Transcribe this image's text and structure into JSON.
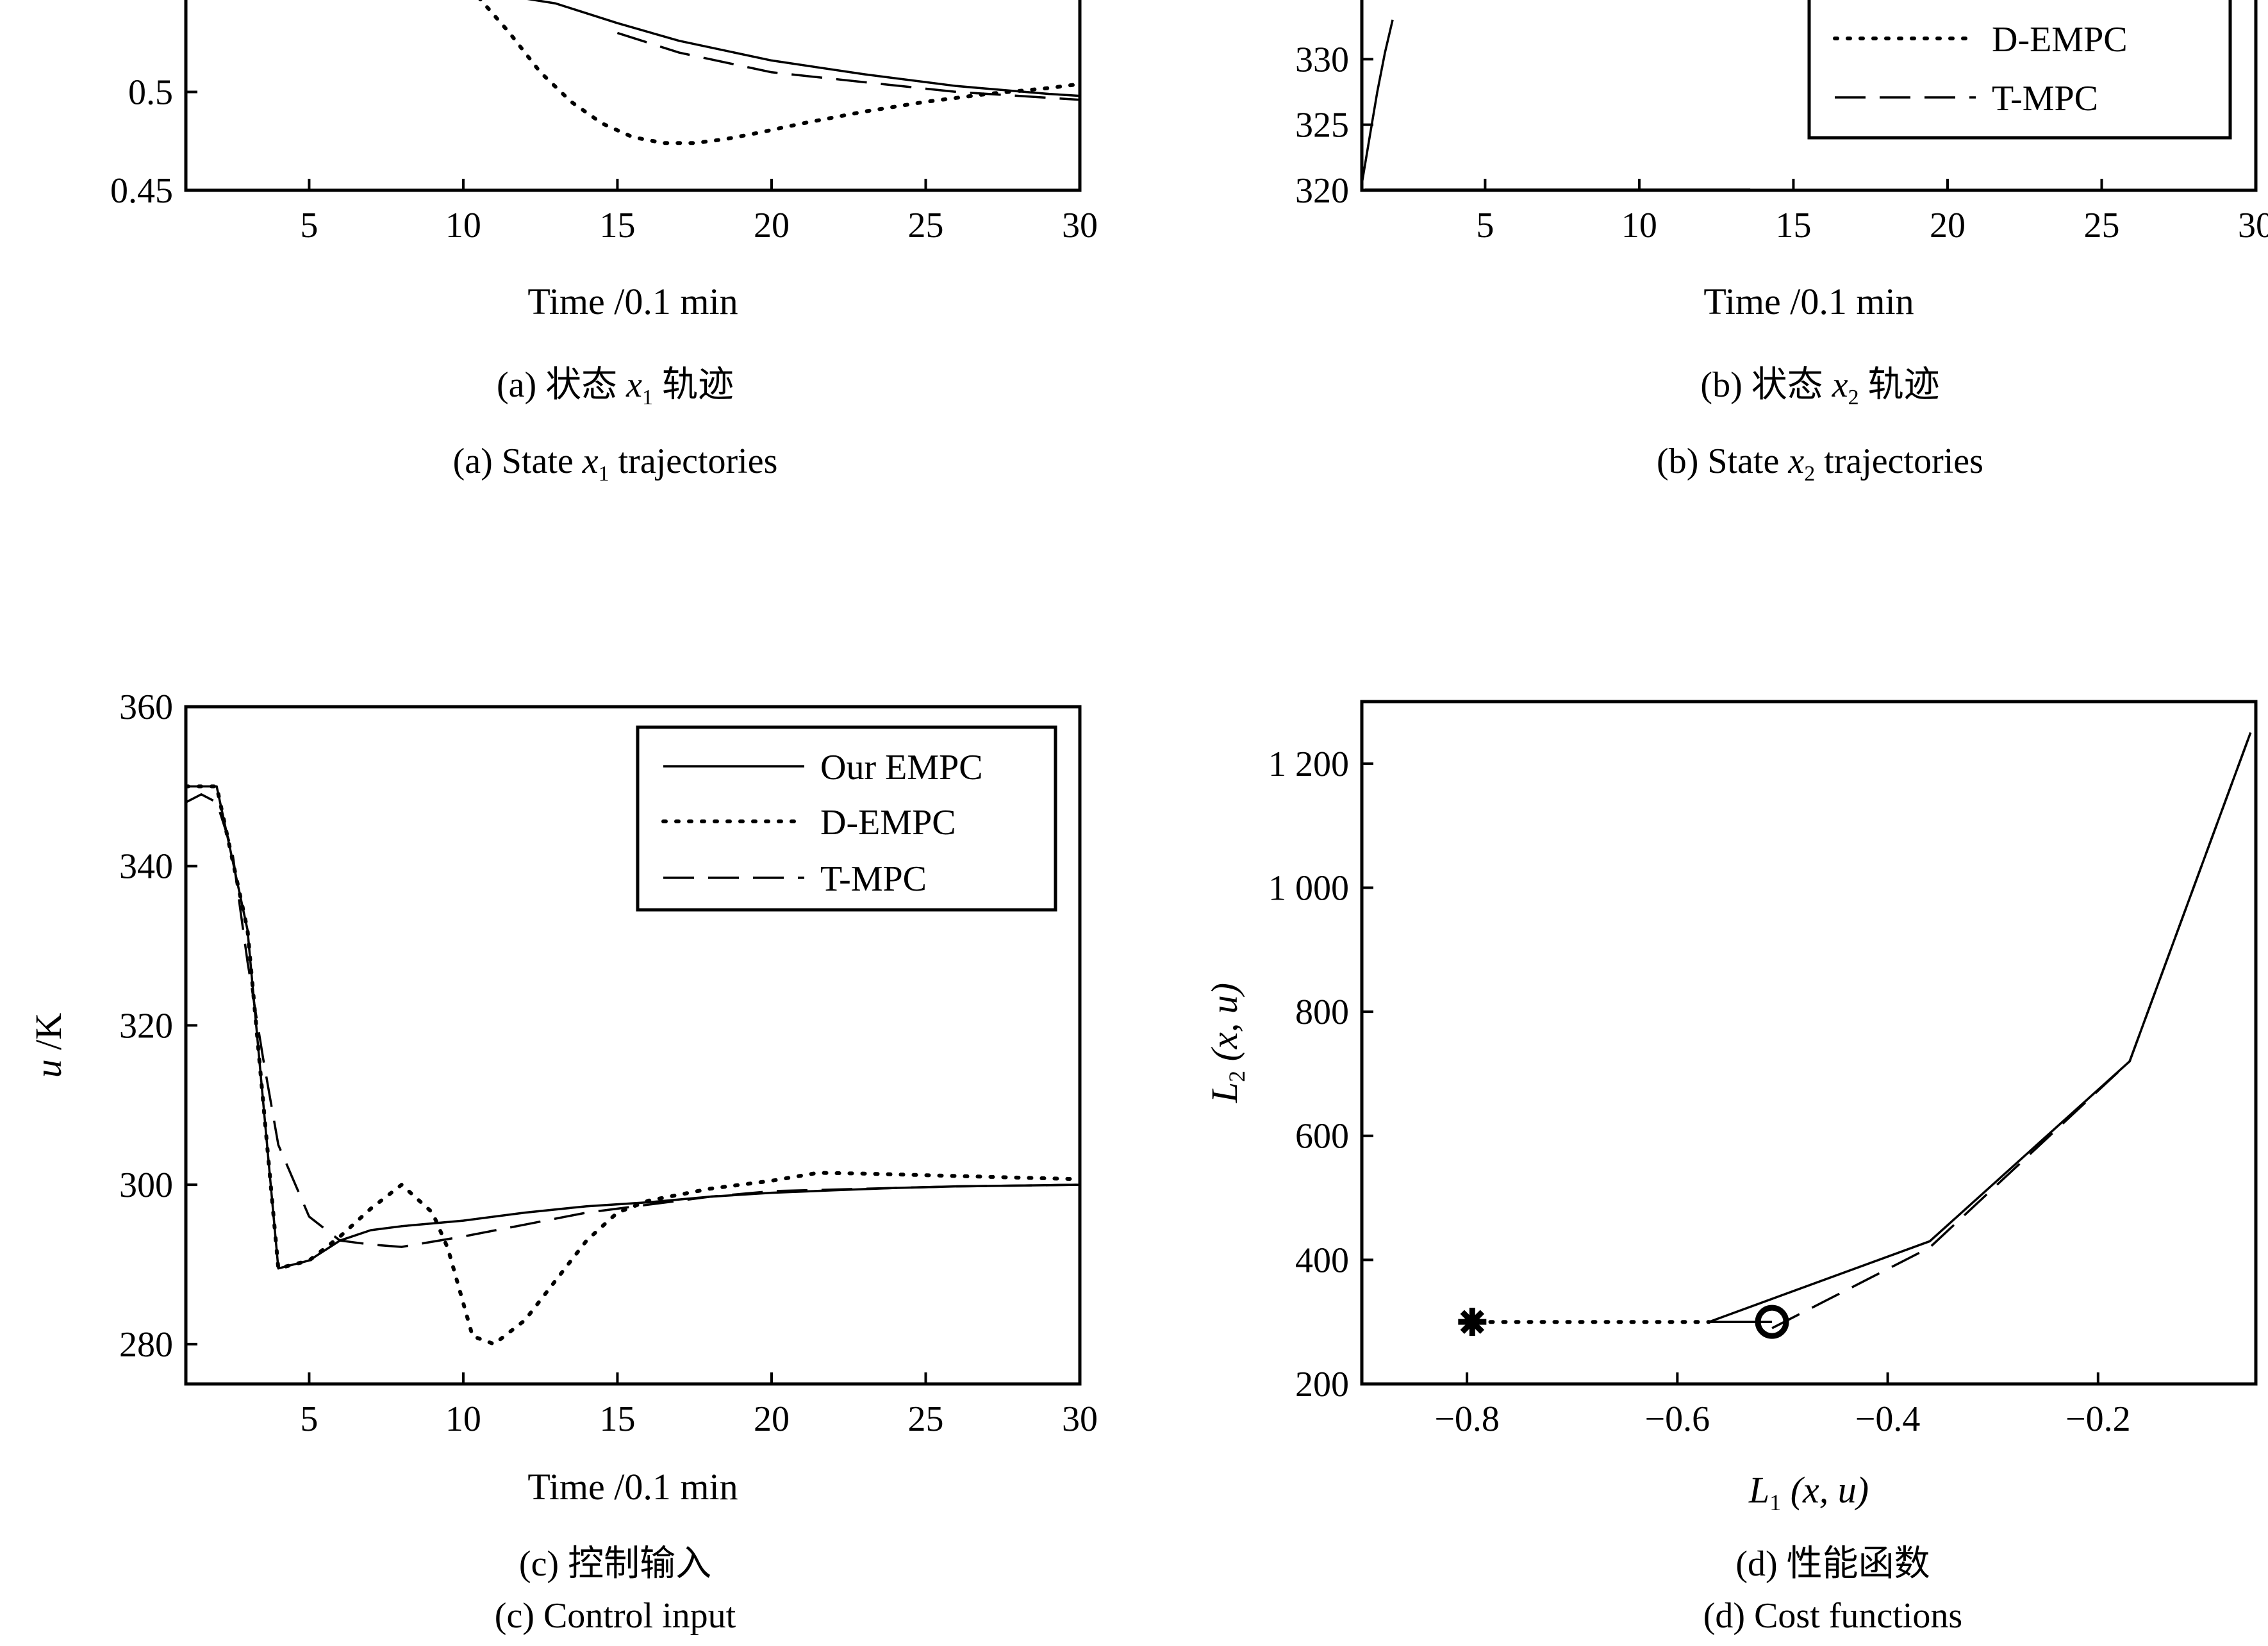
{
  "chart_data": [
    {
      "id": "a",
      "type": "line",
      "xlabel": "Time /0.1 min",
      "ylabel": "",
      "xlim": [
        1,
        30
      ],
      "ylim": [
        0.45,
        0.55
      ],
      "xticks": [
        5,
        10,
        15,
        20,
        25,
        30
      ],
      "yticks": [
        0.45,
        0.5
      ],
      "legend": "none",
      "series": [
        {
          "name": "",
          "style": "solid",
          "x": [
            11,
            13,
            15,
            17,
            20,
            23,
            26,
            29,
            30
          ],
          "y": [
            0.55,
            0.545,
            0.535,
            0.526,
            0.516,
            0.509,
            0.503,
            0.499,
            0.498
          ]
        },
        {
          "name": "",
          "style": "dotted",
          "x": [
            10.5,
            11.5,
            12.5,
            13.5,
            14.5,
            15.5,
            16.5,
            17.5,
            18.5,
            19.5,
            21,
            23,
            25,
            27,
            29,
            30
          ],
          "y": [
            0.548,
            0.53,
            0.51,
            0.495,
            0.484,
            0.477,
            0.474,
            0.474,
            0.476,
            0.479,
            0.484,
            0.49,
            0.495,
            0.499,
            0.502,
            0.504
          ]
        },
        {
          "name": "",
          "style": "dashed",
          "x": [
            15,
            17,
            20,
            23,
            26,
            29,
            30
          ],
          "y": [
            0.53,
            0.52,
            0.51,
            0.505,
            0.5,
            0.497,
            0.496
          ]
        }
      ],
      "caption_cn": [
        "(a) 状态 ",
        "x",
        "1",
        " 轨迹"
      ],
      "caption_en": [
        "(a) State ",
        "x",
        "1",
        " trajectories"
      ]
    },
    {
      "id": "b",
      "type": "line",
      "xlabel": "Time /0.1 min",
      "ylabel": "",
      "xlim": [
        1,
        30
      ],
      "ylim": [
        320,
        335
      ],
      "xticks": [
        5,
        10,
        15,
        20,
        25,
        30
      ],
      "yticks": [
        320,
        325,
        330
      ],
      "legend": "bottom-right",
      "legend_entries": [
        "D-EMPC",
        "T-MPC"
      ],
      "series": [
        {
          "name": "",
          "style": "solid",
          "x": [
            1,
            1.25,
            1.5,
            1.75,
            2
          ],
          "y": [
            320.5,
            324,
            327.5,
            330.5,
            333
          ]
        },
        {
          "name": "",
          "style": "solid",
          "x": [
            1.1,
            13.6
          ],
          "y": [
            320.05,
            320.05
          ]
        },
        {
          "name": "D-EMPC",
          "style": "dotted",
          "x": [],
          "y": []
        },
        {
          "name": "T-MPC",
          "style": "dashed",
          "x": [],
          "y": []
        }
      ],
      "caption_cn": [
        "(b) 状态  ",
        "x",
        "2",
        " 轨迹"
      ],
      "caption_en": [
        "(b) State ",
        "x",
        "2",
        " trajectories"
      ]
    },
    {
      "id": "c",
      "type": "line",
      "xlabel": "Time /0.1 min",
      "ylabel": "u /K",
      "xlim": [
        1,
        30
      ],
      "ylim": [
        275,
        360
      ],
      "xticks": [
        5,
        10,
        15,
        20,
        25,
        30
      ],
      "yticks": [
        280,
        300,
        320,
        340,
        360
      ],
      "legend": "top-right",
      "legend_entries": [
        "Our EMPC",
        "D-EMPC",
        "T-MPC"
      ],
      "series": [
        {
          "name": "Our EMPC",
          "style": "solid",
          "x": [
            1,
            2,
            3,
            4,
            5,
            6,
            7,
            8,
            10,
            12,
            14,
            16,
            18,
            20,
            22,
            24,
            26,
            28,
            30
          ],
          "y": [
            350,
            350,
            332,
            289.5,
            290.5,
            293,
            294.3,
            294.8,
            295.5,
            296.5,
            297.3,
            297.8,
            298.5,
            299,
            299.3,
            299.6,
            299.8,
            299.9,
            300
          ]
        },
        {
          "name": "D-EMPC",
          "style": "dotted",
          "x": [
            1,
            2,
            3,
            4,
            5,
            6,
            7,
            8,
            9,
            9.5,
            10.3,
            11,
            12,
            13,
            14,
            15,
            16,
            18,
            20,
            21.5,
            23,
            25,
            27,
            29,
            30
          ],
          "y": [
            350,
            350,
            332,
            289.5,
            290.5,
            293.5,
            297,
            300,
            296.5,
            292,
            281,
            280,
            283,
            288,
            293,
            296.5,
            298,
            299.5,
            300.5,
            301.5,
            301.4,
            301.2,
            301,
            300.8,
            300.7
          ]
        },
        {
          "name": "T-MPC",
          "style": "dashed",
          "x": [
            1,
            1.5,
            2,
            2.5,
            3,
            3.5,
            4,
            5,
            6,
            7,
            8,
            10,
            12,
            14,
            16,
            18,
            20,
            22,
            24,
            26,
            28,
            30
          ],
          "y": [
            348,
            349,
            348,
            342,
            328,
            316,
            305,
            296,
            293,
            292.5,
            292.2,
            293.5,
            295,
            296.5,
            297.5,
            298.5,
            299.2,
            299.4,
            299.6,
            299.8,
            299.9,
            300
          ]
        }
      ],
      "caption_cn": [
        "(c) 控制输入"
      ],
      "caption_en": [
        "(c) Control input"
      ]
    },
    {
      "id": "d",
      "type": "line",
      "xlabel": "L1 (x, u)",
      "ylabel": "L2 (x, u)",
      "xlim": [
        -0.9,
        -0.05
      ],
      "ylim": [
        200,
        1300
      ],
      "xticks": [
        -0.8,
        -0.6,
        -0.4,
        -0.2
      ],
      "xtick_labels": [
        "−0.8",
        "−0.6",
        "−0.4",
        "−0.2"
      ],
      "yticks": [
        200,
        400,
        600,
        800,
        1000,
        1200
      ],
      "ytick_labels": [
        "200",
        "400",
        "600",
        "800",
        "1 000",
        "1 200"
      ],
      "legend": "none",
      "series": [
        {
          "name": "",
          "style": "solid",
          "x": [
            -0.57,
            -0.36,
            -0.17,
            -0.055
          ],
          "y": [
            300,
            430,
            720,
            1250
          ]
        },
        {
          "name": "",
          "style": "dotted",
          "x": [
            -0.79,
            -0.57
          ],
          "y": [
            300,
            300
          ]
        },
        {
          "name": "",
          "style": "dashed",
          "x": [
            -0.51,
            -0.36,
            -0.17,
            -0.055
          ],
          "y": [
            290,
            420,
            720,
            1250
          ]
        },
        {
          "name": "",
          "style": "solid",
          "x": [
            -0.57,
            -0.51
          ],
          "y": [
            300,
            300
          ]
        }
      ],
      "markers": [
        {
          "symbol": "asterisk",
          "x": -0.795,
          "y": 300
        },
        {
          "symbol": "circle",
          "x": -0.51,
          "y": 300
        }
      ],
      "caption_cn": [
        "(d) 性能函数"
      ],
      "caption_en": [
        "(d) Cost functions"
      ]
    }
  ]
}
